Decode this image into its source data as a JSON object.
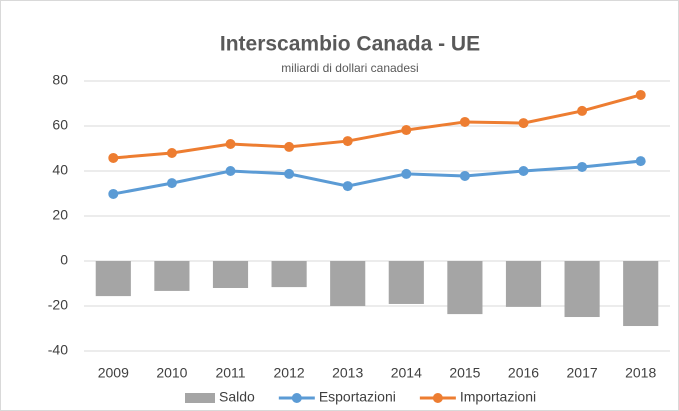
{
  "chart_data": {
    "type": "combo",
    "title": "Interscambio Canada - UE",
    "subtitle": "miliardi di dollari canadesi",
    "categories": [
      "2009",
      "2010",
      "2011",
      "2012",
      "2013",
      "2014",
      "2015",
      "2016",
      "2017",
      "2018"
    ],
    "series": [
      {
        "name": "Saldo",
        "type": "bar",
        "color": "#a5a5a5",
        "values": [
          -15.6,
          -13.3,
          -12,
          -11.6,
          -20,
          -19.1,
          -23.6,
          -20.4,
          -24.9,
          -28.9
        ]
      },
      {
        "name": "Esportazioni",
        "type": "line",
        "color": "#5b9bd5",
        "values": [
          29.8,
          34.6,
          40,
          38.7,
          33.3,
          38.7,
          37.8,
          40,
          41.8,
          44.4
        ]
      },
      {
        "name": "Importazioni",
        "type": "line",
        "color": "#ed7d31",
        "values": [
          45.8,
          48,
          52,
          50.7,
          53.3,
          58.2,
          61.8,
          61.3,
          66.7,
          73.8
        ]
      }
    ],
    "ylim": [
      -40,
      80
    ],
    "yticks": [
      -40,
      -20,
      0,
      20,
      40,
      60,
      80
    ],
    "grid": true,
    "legend": "bottom"
  }
}
